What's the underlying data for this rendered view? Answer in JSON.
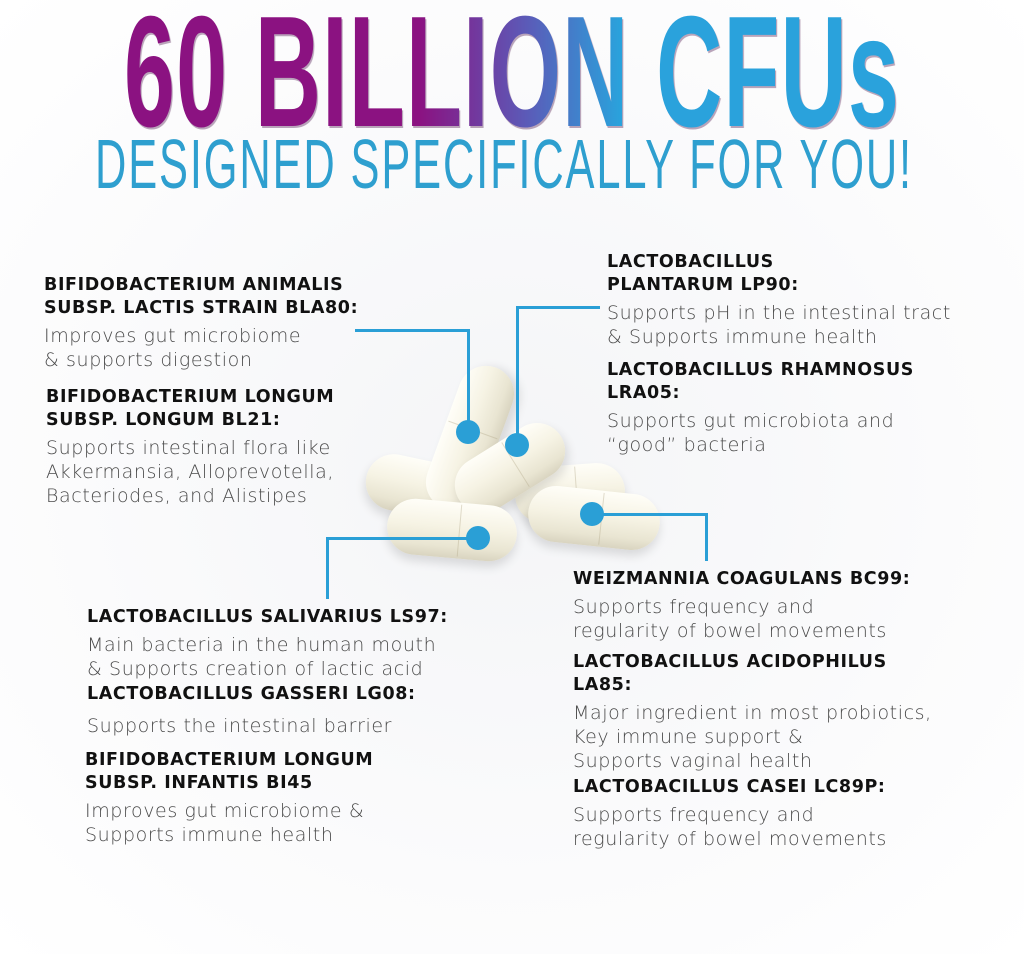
{
  "header": {
    "title": "60 BILLION CFUs",
    "subtitle": "DESIGNED SPECIFICALLY FOR YOU!"
  },
  "accent_color": "#2a9fd6",
  "title_gradient": [
    "#8b1281",
    "#2aa2dc"
  ],
  "strains": [
    {
      "name": [
        "BIFIDOBACTERIUM ANIMALIS",
        "SUBSP. LACTIS STRAIN BLA80:"
      ],
      "desc": [
        "Improves gut microbiome",
        "& supports digestion"
      ]
    },
    {
      "name": [
        "BIFIDOBACTERIUM LONGUM",
        "SUBSP. LONGUM BL21:"
      ],
      "desc": [
        "Supports intestinal flora like",
        "Akkermansia, Alloprevotella,",
        "Bacteriodes, and Alistipes"
      ]
    },
    {
      "name": [
        "LACTOBACILLUS",
        "PLANTARUM LP90:"
      ],
      "desc": [
        "Supports pH in the intestinal tract",
        "& Supports immune health"
      ]
    },
    {
      "name": [
        "LACTOBACILLUS RHAMNOSUS",
        "LRA05:"
      ],
      "desc": [
        "Supports gut microbiota and",
        "“good” bacteria"
      ]
    },
    {
      "name": [
        "LACTOBACILLUS SALIVARIUS LS97:"
      ],
      "desc": [
        "Main bacteria in the human mouth",
        "& Supports creation of lactic acid"
      ]
    },
    {
      "name": [
        "LACTOBACILLUS GASSERI LG08:"
      ],
      "desc": [
        "Supports the intestinal barrier"
      ]
    },
    {
      "name": [
        "BIFIDOBACTERIUM LONGUM",
        "SUBSP. INFANTIS BI45"
      ],
      "desc": [
        "Improves gut microbiome &",
        "Supports immune health"
      ]
    },
    {
      "name": [
        "WEIZMANNIA COAGULANS BC99:"
      ],
      "desc": [
        "Supports frequency and",
        "regularity of bowel movements"
      ]
    },
    {
      "name": [
        "LACTOBACILLUS ACIDOPHILUS",
        "LA85:"
      ],
      "desc": [
        "Major ingredient in most probiotics,",
        "Key immune support &",
        "Supports vaginal health"
      ]
    },
    {
      "name": [
        "LACTOBACILLUS CASEI LC89P:"
      ],
      "desc": [
        "Supports frequency and",
        "regularity of bowel movements"
      ]
    }
  ]
}
